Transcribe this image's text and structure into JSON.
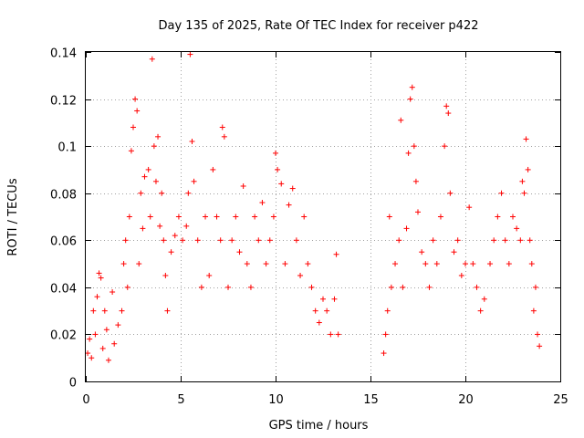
{
  "chart_data": {
    "type": "scatter",
    "title": "Day 135 of 2025, Rate Of TEC Index for receiver p422",
    "xlabel": "GPS time / hours",
    "ylabel": "ROTI / TECUs",
    "xlim": [
      0,
      25
    ],
    "ylim": [
      0,
      0.14
    ],
    "xticks": [
      0,
      5,
      10,
      15,
      20,
      25
    ],
    "xtick_labels": [
      "0",
      "5",
      "10",
      "15",
      "20",
      "25"
    ],
    "yticks": [
      0,
      0.02,
      0.04,
      0.06,
      0.08,
      0.1,
      0.12,
      0.14
    ],
    "ytick_labels": [
      "0",
      "0.02",
      "0.04",
      "0.06",
      "0.08",
      "0.1",
      "0.12",
      "0.14"
    ],
    "grid": true,
    "marker": "+",
    "color": "#ff0000",
    "series": [
      {
        "name": "p422",
        "data_gap_hours": [
          13.4,
          15.6
        ],
        "points": [
          [
            0.1,
            0.012
          ],
          [
            0.2,
            0.018
          ],
          [
            0.3,
            0.01
          ],
          [
            0.4,
            0.03
          ],
          [
            0.5,
            0.02
          ],
          [
            0.6,
            0.036
          ],
          [
            0.7,
            0.046
          ],
          [
            0.8,
            0.044
          ],
          [
            0.9,
            0.014
          ],
          [
            1.0,
            0.03
          ],
          [
            1.1,
            0.022
          ],
          [
            1.2,
            0.009
          ],
          [
            1.4,
            0.038
          ],
          [
            1.5,
            0.016
          ],
          [
            1.7,
            0.024
          ],
          [
            1.9,
            0.03
          ],
          [
            2.0,
            0.05
          ],
          [
            2.1,
            0.06
          ],
          [
            2.2,
            0.04
          ],
          [
            2.3,
            0.07
          ],
          [
            2.4,
            0.098
          ],
          [
            2.5,
            0.108
          ],
          [
            2.6,
            0.12
          ],
          [
            2.7,
            0.115
          ],
          [
            2.8,
            0.05
          ],
          [
            2.9,
            0.08
          ],
          [
            3.0,
            0.065
          ],
          [
            3.1,
            0.087
          ],
          [
            3.3,
            0.09
          ],
          [
            3.4,
            0.07
          ],
          [
            3.5,
            0.137
          ],
          [
            3.6,
            0.1
          ],
          [
            3.7,
            0.085
          ],
          [
            3.8,
            0.104
          ],
          [
            3.9,
            0.066
          ],
          [
            4.0,
            0.08
          ],
          [
            4.1,
            0.06
          ],
          [
            4.2,
            0.045
          ],
          [
            4.3,
            0.03
          ],
          [
            4.5,
            0.055
          ],
          [
            4.7,
            0.062
          ],
          [
            4.9,
            0.07
          ],
          [
            5.1,
            0.06
          ],
          [
            5.3,
            0.066
          ],
          [
            5.4,
            0.08
          ],
          [
            5.5,
            0.139
          ],
          [
            5.6,
            0.102
          ],
          [
            5.7,
            0.085
          ],
          [
            5.9,
            0.06
          ],
          [
            6.1,
            0.04
          ],
          [
            6.3,
            0.07
          ],
          [
            6.5,
            0.045
          ],
          [
            6.7,
            0.09
          ],
          [
            6.9,
            0.07
          ],
          [
            7.1,
            0.06
          ],
          [
            7.2,
            0.108
          ],
          [
            7.3,
            0.104
          ],
          [
            7.5,
            0.04
          ],
          [
            7.7,
            0.06
          ],
          [
            7.9,
            0.07
          ],
          [
            8.1,
            0.055
          ],
          [
            8.3,
            0.083
          ],
          [
            8.5,
            0.05
          ],
          [
            8.7,
            0.04
          ],
          [
            8.9,
            0.07
          ],
          [
            9.1,
            0.06
          ],
          [
            9.3,
            0.076
          ],
          [
            9.5,
            0.05
          ],
          [
            9.7,
            0.06
          ],
          [
            9.9,
            0.07
          ],
          [
            10.0,
            0.097
          ],
          [
            10.1,
            0.09
          ],
          [
            10.3,
            0.084
          ],
          [
            10.5,
            0.05
          ],
          [
            10.7,
            0.075
          ],
          [
            10.9,
            0.082
          ],
          [
            11.1,
            0.06
          ],
          [
            11.3,
            0.045
          ],
          [
            11.5,
            0.07
          ],
          [
            11.7,
            0.05
          ],
          [
            11.9,
            0.04
          ],
          [
            12.1,
            0.03
          ],
          [
            12.3,
            0.025
          ],
          [
            12.5,
            0.035
          ],
          [
            12.7,
            0.03
          ],
          [
            12.9,
            0.02
          ],
          [
            13.1,
            0.035
          ],
          [
            13.2,
            0.054
          ],
          [
            13.3,
            0.02
          ],
          [
            15.7,
            0.012
          ],
          [
            15.8,
            0.02
          ],
          [
            15.9,
            0.03
          ],
          [
            16.0,
            0.07
          ],
          [
            16.1,
            0.04
          ],
          [
            16.3,
            0.05
          ],
          [
            16.5,
            0.06
          ],
          [
            16.6,
            0.111
          ],
          [
            16.7,
            0.04
          ],
          [
            16.9,
            0.065
          ],
          [
            17.0,
            0.097
          ],
          [
            17.1,
            0.12
          ],
          [
            17.2,
            0.125
          ],
          [
            17.3,
            0.1
          ],
          [
            17.4,
            0.085
          ],
          [
            17.5,
            0.072
          ],
          [
            17.7,
            0.055
          ],
          [
            17.9,
            0.05
          ],
          [
            18.1,
            0.04
          ],
          [
            18.3,
            0.06
          ],
          [
            18.5,
            0.05
          ],
          [
            18.7,
            0.07
          ],
          [
            18.9,
            0.1
          ],
          [
            19.0,
            0.117
          ],
          [
            19.1,
            0.114
          ],
          [
            19.2,
            0.08
          ],
          [
            19.4,
            0.055
          ],
          [
            19.6,
            0.06
          ],
          [
            19.8,
            0.045
          ],
          [
            20.0,
            0.05
          ],
          [
            20.2,
            0.074
          ],
          [
            20.4,
            0.05
          ],
          [
            20.6,
            0.04
          ],
          [
            20.8,
            0.03
          ],
          [
            21.0,
            0.035
          ],
          [
            21.3,
            0.05
          ],
          [
            21.5,
            0.06
          ],
          [
            21.7,
            0.07
          ],
          [
            21.9,
            0.08
          ],
          [
            22.1,
            0.06
          ],
          [
            22.3,
            0.05
          ],
          [
            22.5,
            0.07
          ],
          [
            22.7,
            0.065
          ],
          [
            22.9,
            0.06
          ],
          [
            23.0,
            0.085
          ],
          [
            23.1,
            0.08
          ],
          [
            23.2,
            0.103
          ],
          [
            23.3,
            0.09
          ],
          [
            23.4,
            0.06
          ],
          [
            23.5,
            0.05
          ],
          [
            23.6,
            0.03
          ],
          [
            23.7,
            0.04
          ],
          [
            23.8,
            0.02
          ],
          [
            23.9,
            0.015
          ]
        ]
      }
    ]
  }
}
